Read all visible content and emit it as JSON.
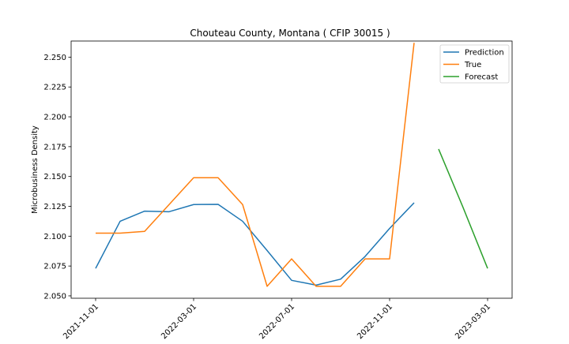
{
  "chart_data": {
    "type": "line",
    "title": "Chouteau County, Montana ( CFIP 30015 )",
    "xlabel": "",
    "ylabel": "Microbusiness Density",
    "x_tick_labels": [
      "2021-11-01",
      "2022-03-01",
      "2022-07-01",
      "2022-11-01",
      "2023-03-01"
    ],
    "y_tick_labels": [
      "2.050",
      "2.075",
      "2.100",
      "2.125",
      "2.150",
      "2.175",
      "2.200",
      "2.225",
      "2.250"
    ],
    "y_ticks": [
      2.05,
      2.075,
      2.1,
      2.125,
      2.15,
      2.175,
      2.2,
      2.225,
      2.25
    ],
    "ylim": [
      2.048,
      2.2635
    ],
    "xlim": [
      "2021-10-01",
      "2023-04-01"
    ],
    "legend_position": "upper right",
    "grid": false,
    "series": [
      {
        "name": "Prediction",
        "color": "#1f77b4",
        "x": [
          "2021-11-01",
          "2021-12-01",
          "2022-01-01",
          "2022-02-01",
          "2022-03-01",
          "2022-04-01",
          "2022-05-01",
          "2022-06-01",
          "2022-07-01",
          "2022-08-01",
          "2022-09-01",
          "2022-10-01",
          "2022-11-01",
          "2022-12-01"
        ],
        "values": [
          2.073,
          2.1125,
          2.121,
          2.1205,
          2.1265,
          2.1267,
          2.1125,
          2.088,
          2.063,
          2.059,
          2.064,
          2.083,
          2.1065,
          2.128
        ]
      },
      {
        "name": "True",
        "color": "#ff7f0e",
        "x": [
          "2021-11-01",
          "2021-12-01",
          "2022-01-01",
          "2022-02-01",
          "2022-03-01",
          "2022-04-01",
          "2022-05-01",
          "2022-06-01",
          "2022-07-01",
          "2022-08-01",
          "2022-09-01",
          "2022-10-01",
          "2022-11-01",
          "2022-12-01"
        ],
        "values": [
          2.1025,
          2.1025,
          2.104,
          2.1265,
          2.149,
          2.149,
          2.1265,
          2.058,
          2.081,
          2.058,
          2.058,
          2.081,
          2.081,
          2.262
        ]
      },
      {
        "name": "Forecast",
        "color": "#2ca02c",
        "x": [
          "2023-01-01",
          "2023-02-01",
          "2023-03-01"
        ],
        "values": [
          2.173,
          2.124,
          2.073
        ]
      }
    ]
  }
}
